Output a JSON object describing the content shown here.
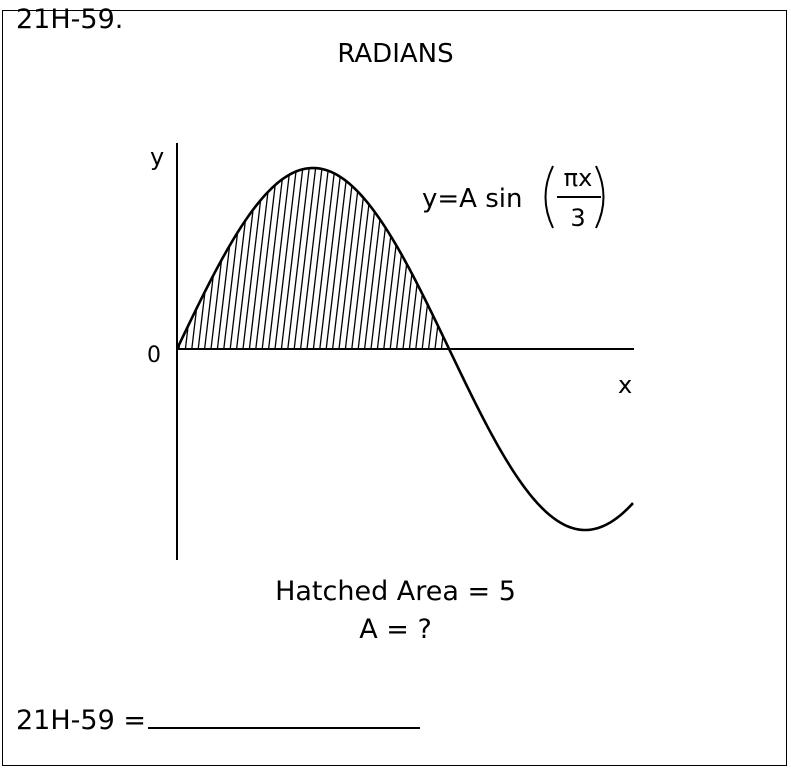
{
  "problem": {
    "id_label": "21H-59.",
    "units": "RADIANS",
    "given": "Hatched Area = 5",
    "question": "A = ?",
    "answer_label": "21H-59 ="
  },
  "figure": {
    "axis_y_label": "y",
    "axis_x_label": "x",
    "origin_label": "0",
    "equation_prefix": "y=A sin",
    "equation_numerator": "πx",
    "equation_denominator": "3"
  }
}
